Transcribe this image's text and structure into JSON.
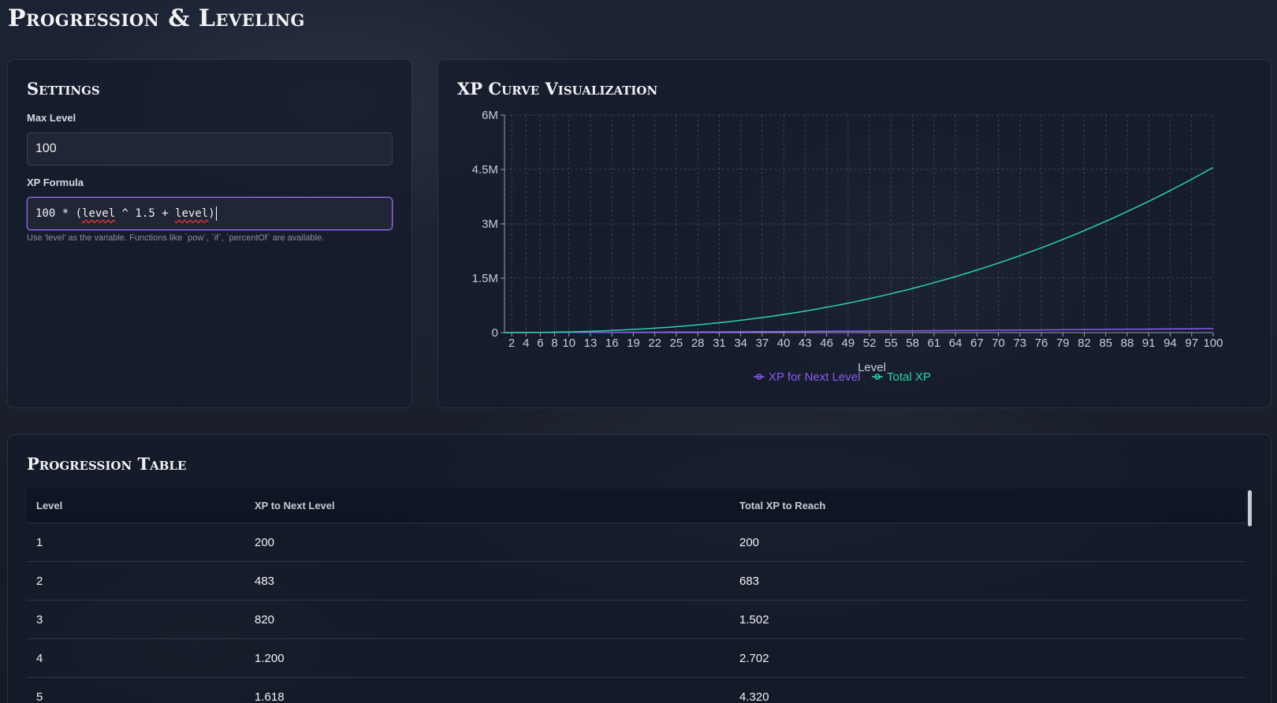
{
  "page": {
    "title": "Progression & Leveling"
  },
  "settings": {
    "title": "Settings",
    "max_level_label": "Max Level",
    "max_level_value": "100",
    "formula_label": "XP Formula",
    "formula_parts": [
      "100 * (",
      "level",
      " ^ 1.5 + ",
      "level",
      ")"
    ],
    "hint": "Use 'level' as the variable. Functions like `pow`, `if`, `percentOf` are available."
  },
  "chart": {
    "title": "XP Curve Visualization",
    "x_label": "Level",
    "legend": [
      "XP for Next Level",
      "Total XP"
    ],
    "colors": {
      "next": "#8b5cf6",
      "total": "#2dd4a4"
    }
  },
  "chart_data": {
    "type": "line",
    "xlabel": "Level",
    "ylabel": "",
    "xlim": [
      1,
      100
    ],
    "ylim": [
      0,
      6000000
    ],
    "y_ticks": [
      "0",
      "1.5M",
      "3M",
      "4.5M",
      "6M"
    ],
    "x_ticks": [
      "2",
      "4",
      "6",
      "8",
      "10",
      "13",
      "16",
      "19",
      "22",
      "25",
      "28",
      "31",
      "34",
      "37",
      "40",
      "43",
      "46",
      "49",
      "52",
      "55",
      "58",
      "61",
      "64",
      "67",
      "70",
      "73",
      "76",
      "79",
      "82",
      "85",
      "88",
      "91",
      "94",
      "97",
      "100"
    ],
    "formula": "100 * (level ^ 1.5 + level)",
    "series": [
      {
        "name": "XP for Next Level",
        "color": "#8b5cf6"
      },
      {
        "name": "Total XP",
        "color": "#2dd4a4"
      }
    ],
    "grid": true,
    "legend_position": "bottom-center"
  },
  "table": {
    "title": "Progression Table",
    "headers": [
      "Level",
      "XP to Next Level",
      "Total XP to Reach"
    ],
    "rows": [
      [
        "1",
        "200",
        "200"
      ],
      [
        "2",
        "483",
        "683"
      ],
      [
        "3",
        "820",
        "1.502"
      ],
      [
        "4",
        "1.200",
        "2.702"
      ],
      [
        "5",
        "1.618",
        "4.320"
      ]
    ]
  }
}
